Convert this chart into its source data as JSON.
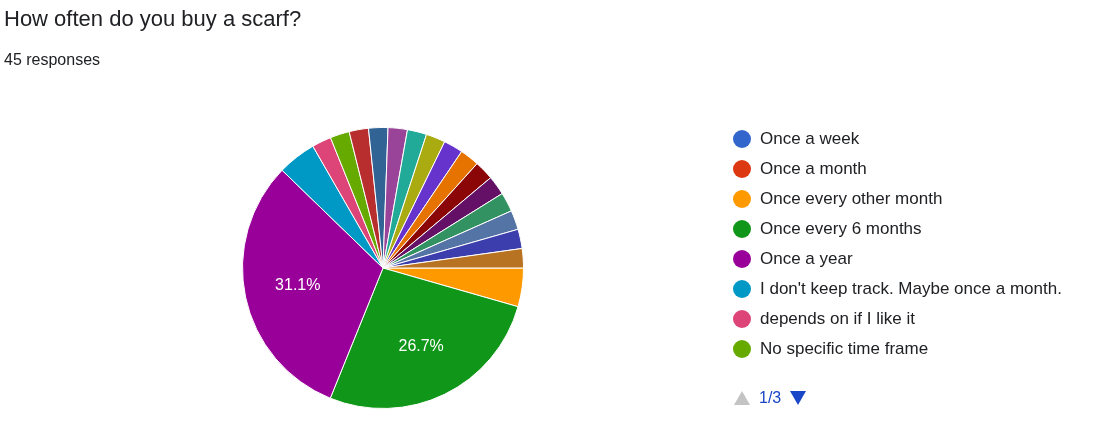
{
  "chart_data": {
    "type": "pie",
    "title": "How often do you buy a scarf?",
    "subtitle": "45 responses",
    "categories": [
      "Once a week",
      "Once a month",
      "Once every other month",
      "Once every 6 months",
      "Once a year",
      "I don't keep track. Maybe once a month.",
      "depends on if I like it",
      "No specific time frame",
      null,
      null,
      null,
      null,
      null,
      null,
      null,
      null,
      null,
      null,
      null,
      null,
      null
    ],
    "values": [
      0,
      0,
      4.44,
      26.67,
      31.11,
      4.44,
      2.22,
      2.22,
      2.22,
      2.22,
      2.22,
      2.22,
      2.22,
      2.22,
      2.22,
      2.22,
      2.22,
      2.22,
      2.22,
      2.22,
      2.22
    ],
    "value_labels": [
      null,
      null,
      null,
      "26.7%",
      "31.1%",
      null,
      null,
      null,
      null,
      null,
      null,
      null,
      null,
      null,
      null,
      null,
      null,
      null,
      null,
      null,
      null
    ],
    "colors": [
      "#3366cc",
      "#dc3912",
      "#ff9900",
      "#109618",
      "#990099",
      "#0099c6",
      "#dd4477",
      "#66aa00",
      "#b82e2e",
      "#316395",
      "#994499",
      "#22aa99",
      "#aaaa11",
      "#6633cc",
      "#e67300",
      "#8b0707",
      "#651067",
      "#329262",
      "#5574a6",
      "#3b3eac",
      "#b77322"
    ],
    "legend": "right",
    "annotations": [
      "1/3"
    ]
  }
}
